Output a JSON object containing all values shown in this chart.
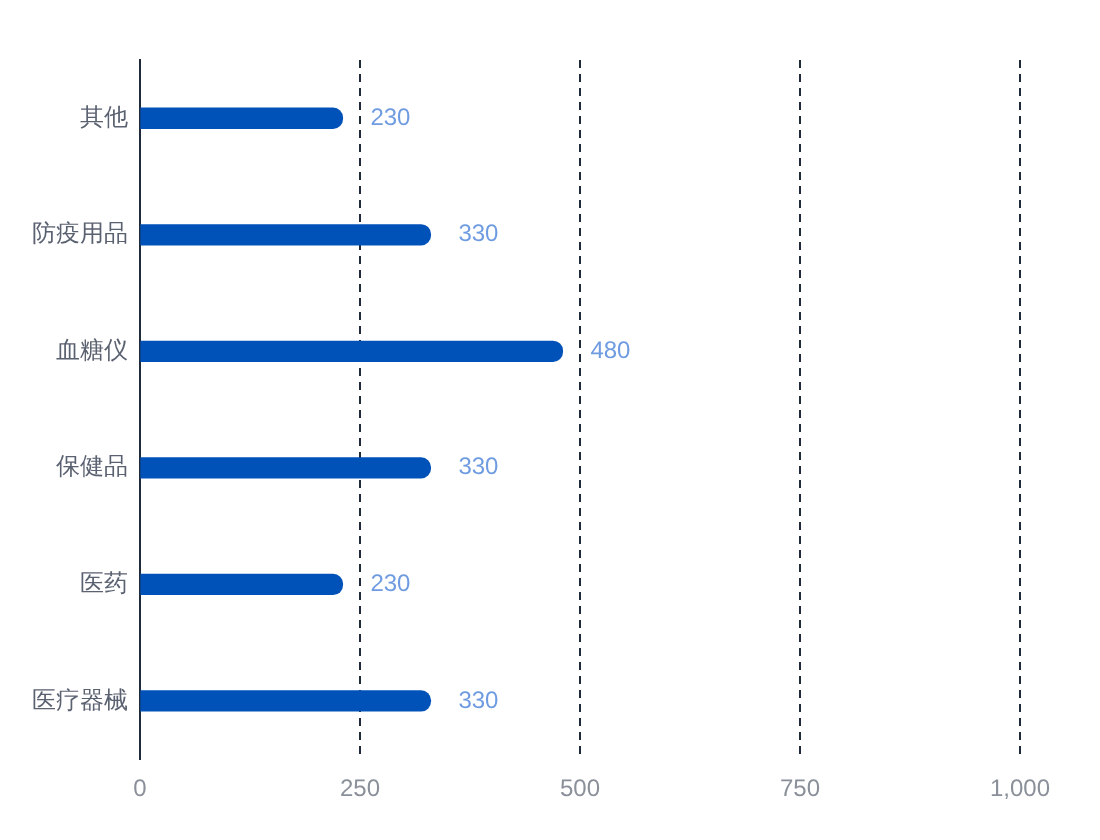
{
  "chart_data": {
    "type": "bar",
    "orientation": "horizontal",
    "categories": [
      "其他",
      "防疫用品",
      "血糖仪",
      "保健品",
      "医药",
      "医疗器械"
    ],
    "values": [
      230,
      330,
      480,
      330,
      230,
      330
    ],
    "color": "#0052b8",
    "xlim": [
      0,
      1000
    ],
    "xticks": [
      0,
      250,
      500,
      750,
      {
        "value": 1000,
        "label": "1,000"
      }
    ],
    "grid": "x",
    "legend": false,
    "data_labels": true
  }
}
